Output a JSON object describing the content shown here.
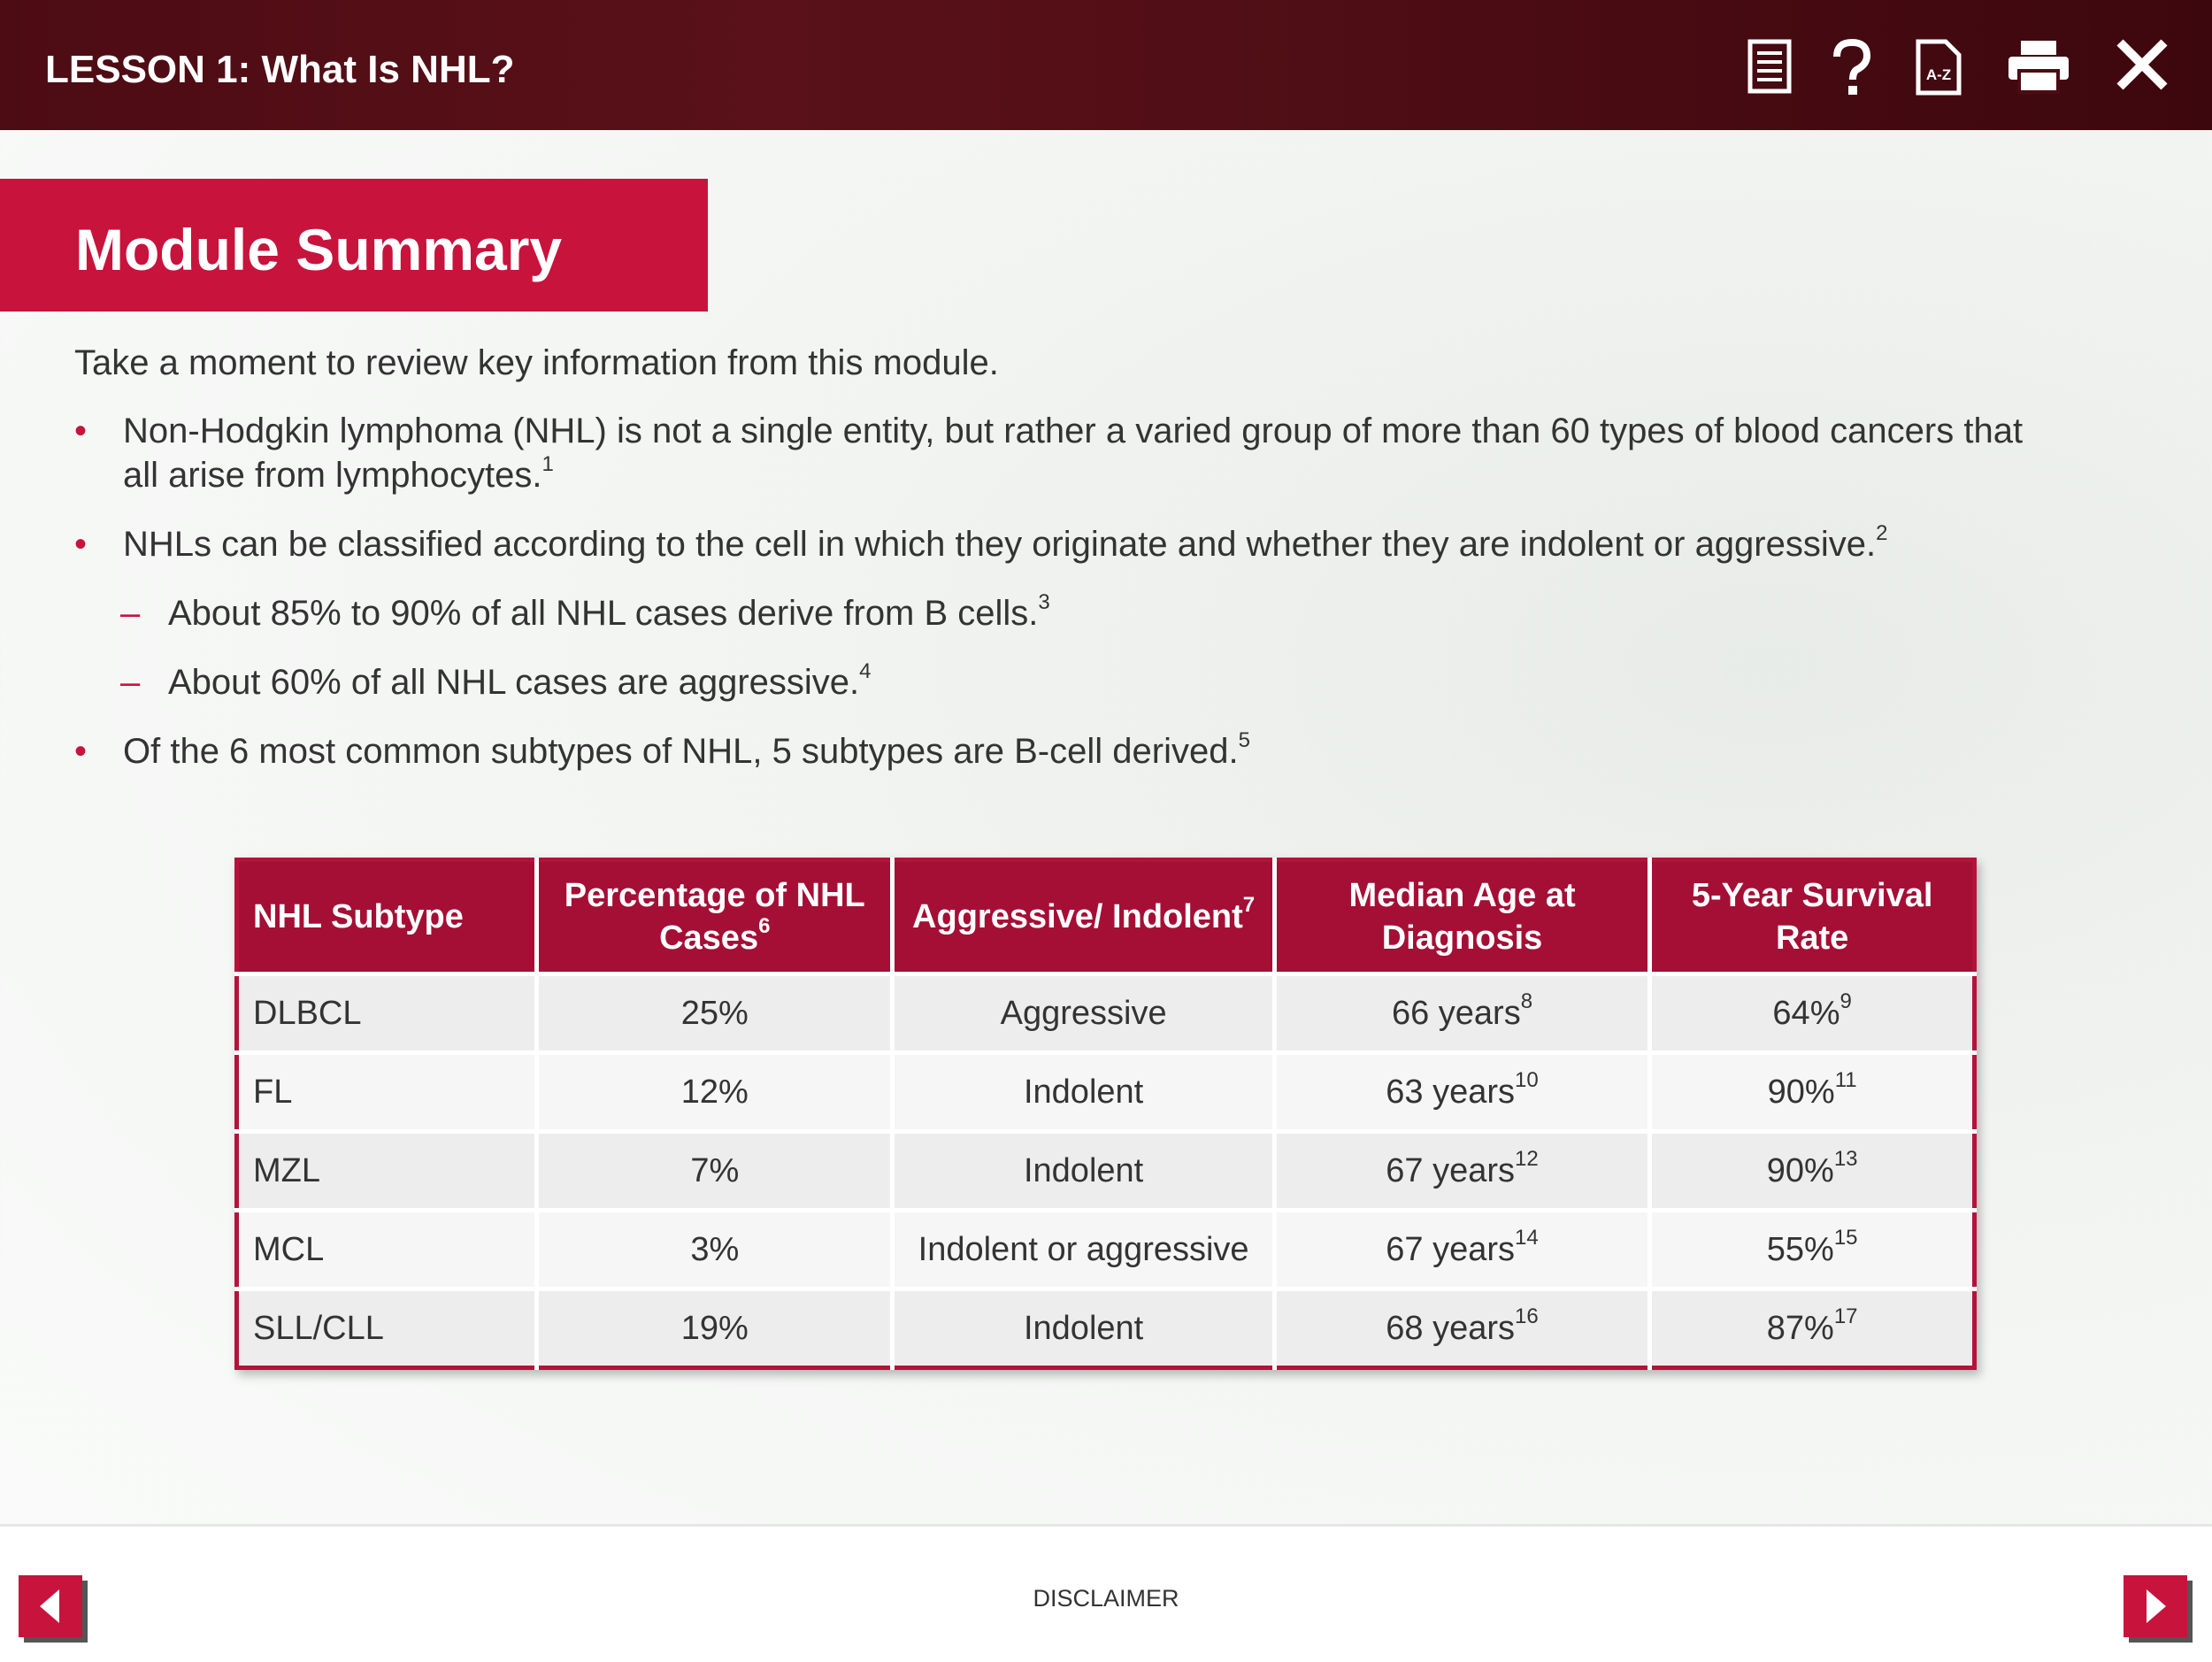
{
  "header": {
    "title": "LESSON 1: What Is NHL?",
    "glossary_icon_label": "A-Z"
  },
  "banner": {
    "title": "Module Summary"
  },
  "intro": "Take a moment to review key information from this module.",
  "bullets": [
    {
      "level": 1,
      "text": "Non-Hodgkin lymphoma (NHL) is not a single entity, but rather a varied group of more than 60 types of blood cancers that all arise from lymphocytes.",
      "sup": "1"
    },
    {
      "level": 1,
      "text": "NHLs can be classified according to the cell in which they originate and whether they are indolent or aggressive.",
      "sup": "2"
    },
    {
      "level": 2,
      "text": "About 85% to 90% of all NHL cases derive from B cells.",
      "sup": "3"
    },
    {
      "level": 2,
      "text": "About 60% of all NHL cases are aggressive.",
      "sup": "4"
    },
    {
      "level": 1,
      "text": "Of the 6 most common subtypes of NHL, 5 subtypes are B-cell derived.",
      "sup": "5"
    }
  ],
  "table": {
    "columns": [
      {
        "text": "NHL Subtype"
      },
      {
        "text": "Percentage of NHL Cases",
        "sup": "6"
      },
      {
        "text": "Aggressive/ Indolent",
        "sup": "7"
      },
      {
        "text": "Median Age at Diagnosis"
      },
      {
        "text": "5-Year Survival Rate"
      }
    ],
    "rows": [
      [
        "DLBCL",
        "25%",
        "Aggressive",
        {
          "text": "66 years",
          "sup": "8"
        },
        {
          "text": "64%",
          "sup": "9"
        }
      ],
      [
        "FL",
        "12%",
        "Indolent",
        {
          "text": "63 years",
          "sup": "10"
        },
        {
          "text": "90%",
          "sup": "11"
        }
      ],
      [
        "MZL",
        "7%",
        "Indolent",
        {
          "text": "67 years",
          "sup": "12"
        },
        {
          "text": "90%",
          "sup": "13"
        }
      ],
      [
        "MCL",
        "3%",
        "Indolent or aggressive",
        {
          "text": "67 years",
          "sup": "14"
        },
        {
          "text": "55%",
          "sup": "15"
        }
      ],
      [
        "SLL/CLL",
        "19%",
        "Indolent",
        {
          "text": "68 years",
          "sup": "16"
        },
        {
          "text": "87%",
          "sup": "17"
        }
      ]
    ]
  },
  "footer": {
    "disclaimer": "DISCLAIMER"
  }
}
